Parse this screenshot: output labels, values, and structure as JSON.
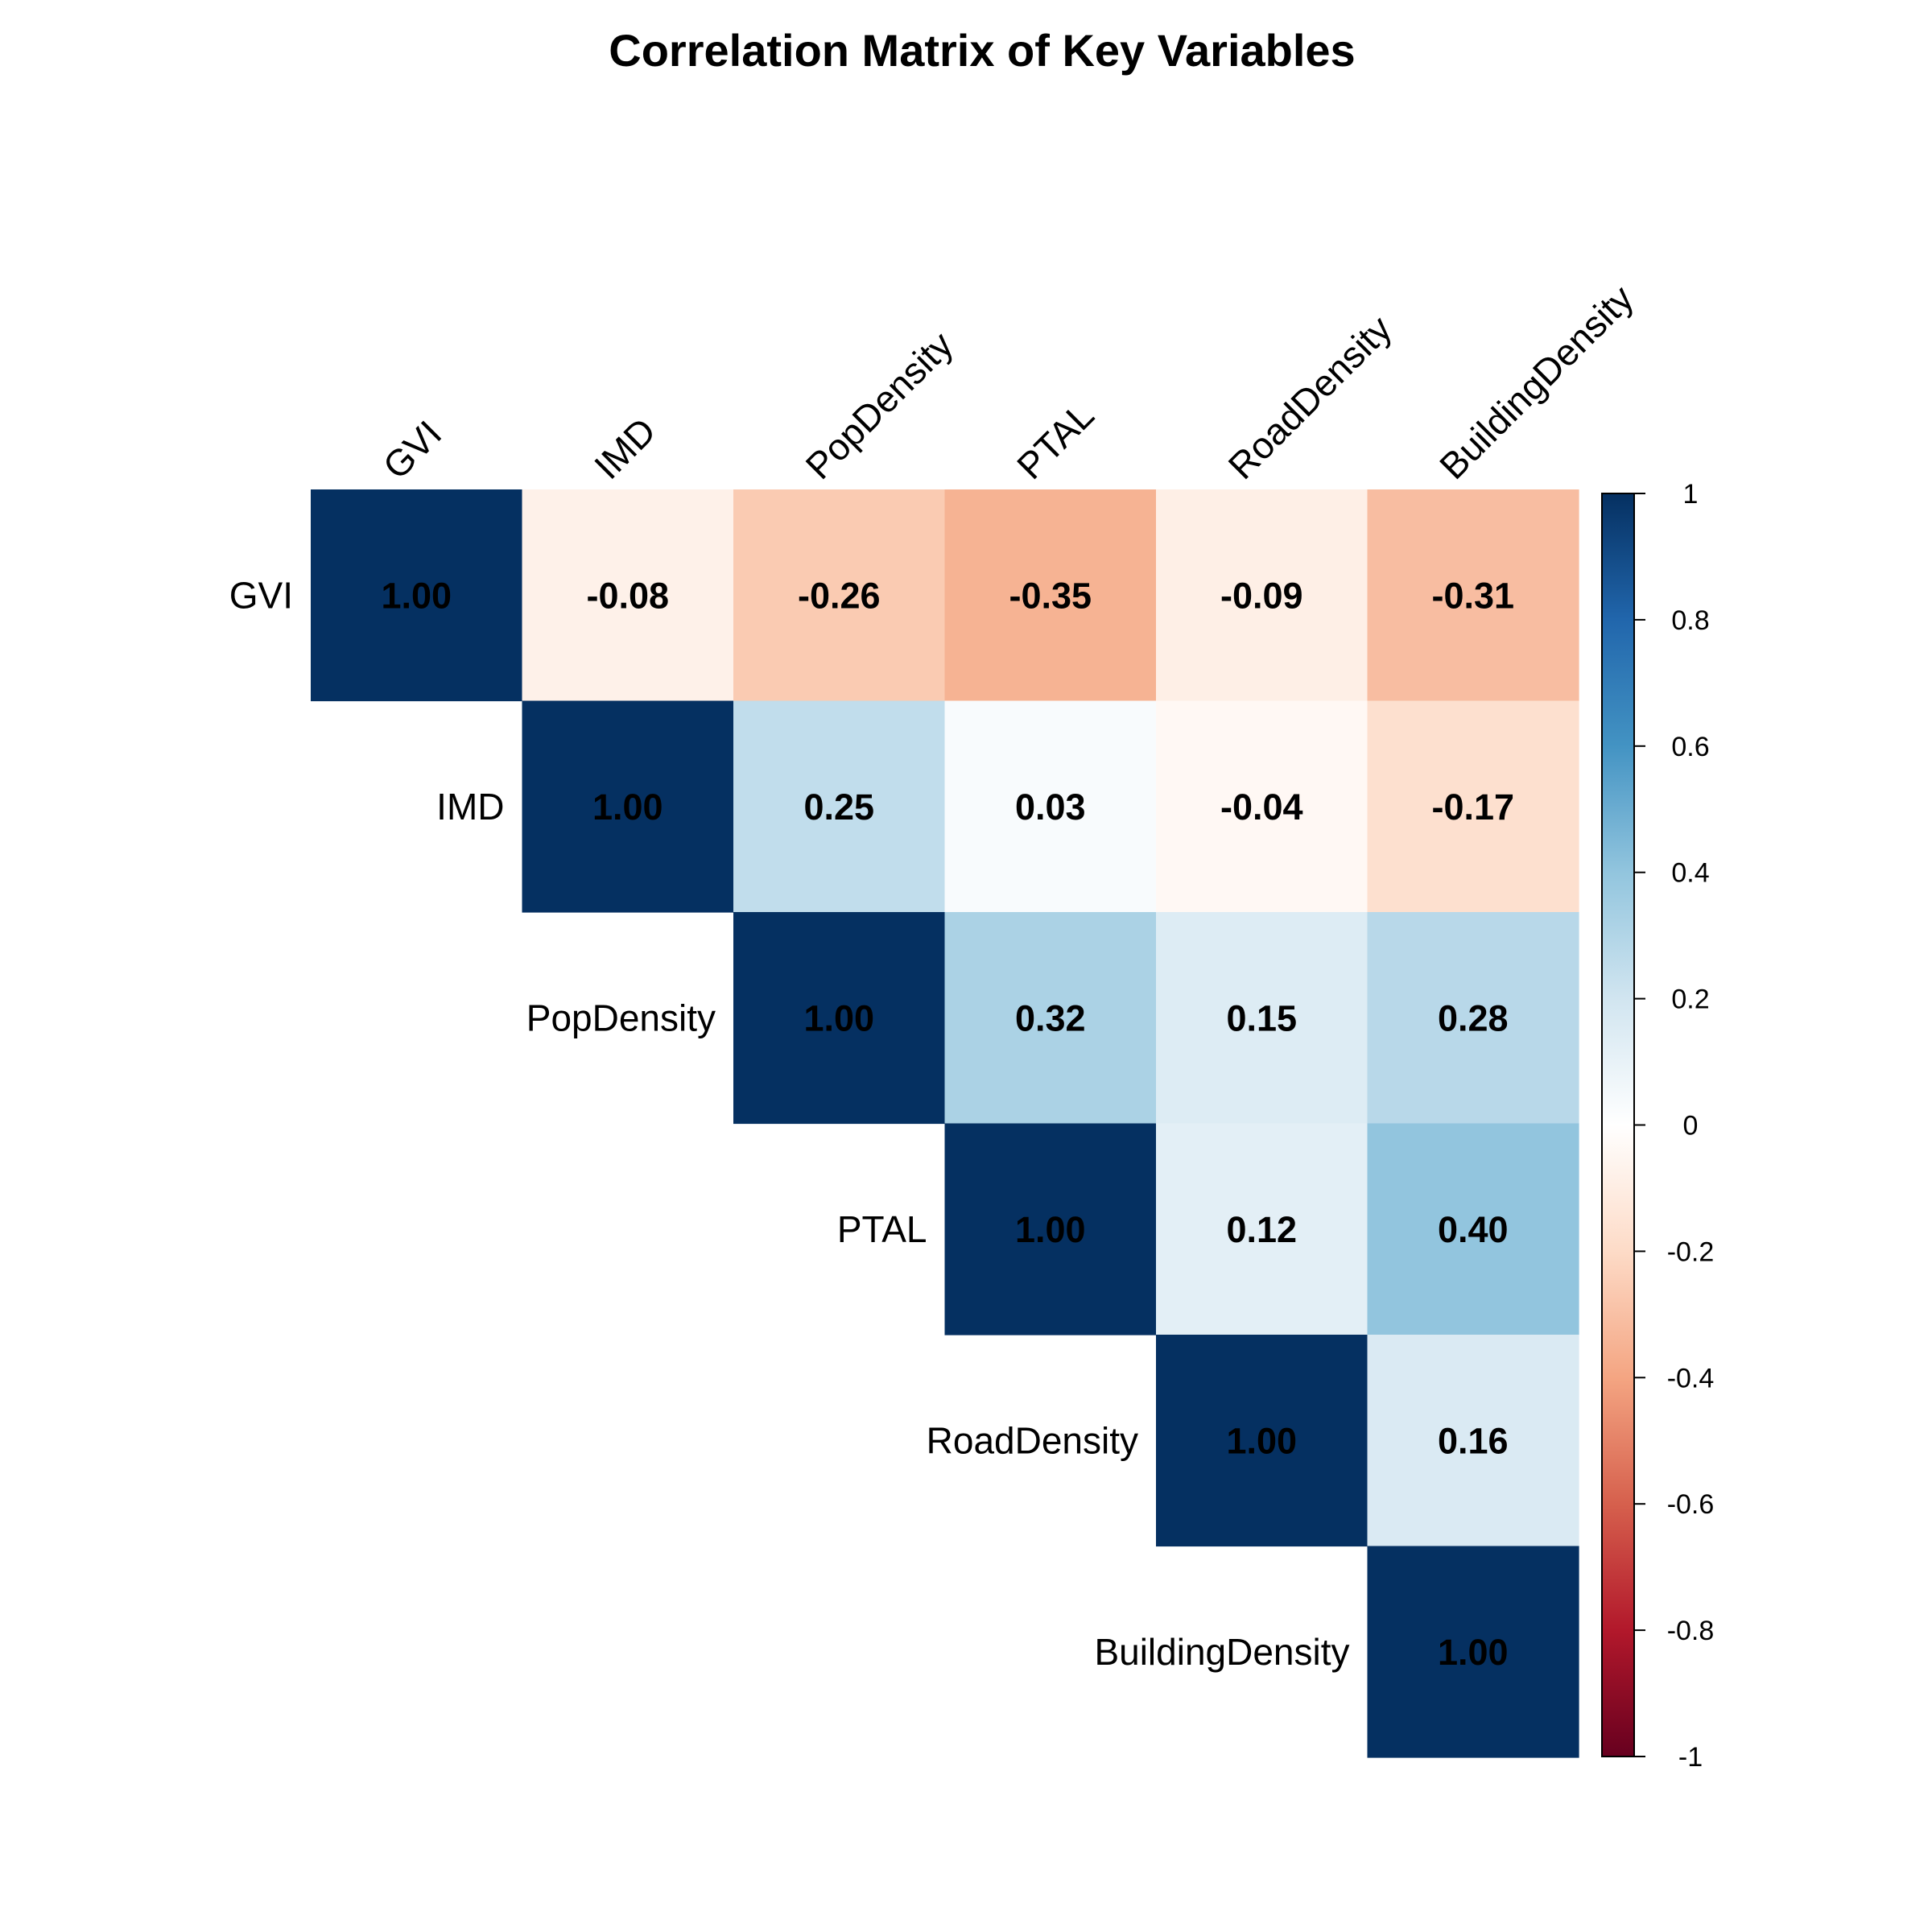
{
  "chart_data": {
    "type": "heatmap",
    "title": "Correlation Matrix of Key Variables",
    "variables": [
      "GVI",
      "IMD",
      "PopDensity",
      "PTAL",
      "RoadDensity",
      "BuildingDensity"
    ],
    "layout": "upper-triangle",
    "matrix": [
      [
        1.0,
        -0.08,
        -0.26,
        -0.35,
        -0.09,
        -0.31
      ],
      [
        null,
        1.0,
        0.25,
        0.03,
        -0.04,
        -0.17
      ],
      [
        null,
        null,
        1.0,
        0.32,
        0.15,
        0.28
      ],
      [
        null,
        null,
        null,
        1.0,
        0.12,
        0.4
      ],
      [
        null,
        null,
        null,
        null,
        1.0,
        0.16
      ],
      [
        null,
        null,
        null,
        null,
        null,
        1.0
      ]
    ],
    "value_labels": [
      [
        "1.00",
        "-0.08",
        "-0.26",
        "-0.35",
        "-0.09",
        "-0.31"
      ],
      [
        null,
        "1.00",
        "0.25",
        "0.03",
        "-0.04",
        "-0.17"
      ],
      [
        null,
        null,
        "1.00",
        "0.32",
        "0.15",
        "0.28"
      ],
      [
        null,
        null,
        null,
        "1.00",
        "0.12",
        "0.40"
      ],
      [
        null,
        null,
        null,
        null,
        "1.00",
        "0.16"
      ],
      [
        null,
        null,
        null,
        null,
        null,
        "1.00"
      ]
    ],
    "colorbar": {
      "range": [
        -1,
        1
      ],
      "ticks": [
        1,
        0.8,
        0.6,
        0.4,
        0.2,
        0,
        -0.2,
        -0.4,
        -0.6,
        -0.8,
        -1
      ],
      "tick_labels": [
        "1",
        "0.8",
        "0.6",
        "0.4",
        "0.2",
        "0",
        "-0.2",
        "-0.4",
        "-0.6",
        "-0.8",
        "-1"
      ],
      "placement": "right",
      "palette": [
        "#67001F",
        "#B2182B",
        "#D6604D",
        "#F4A582",
        "#FDDBC7",
        "#FFFFFF",
        "#D1E5F0",
        "#92C5DE",
        "#4393C3",
        "#2166AC",
        "#053061"
      ]
    },
    "grid": false
  }
}
